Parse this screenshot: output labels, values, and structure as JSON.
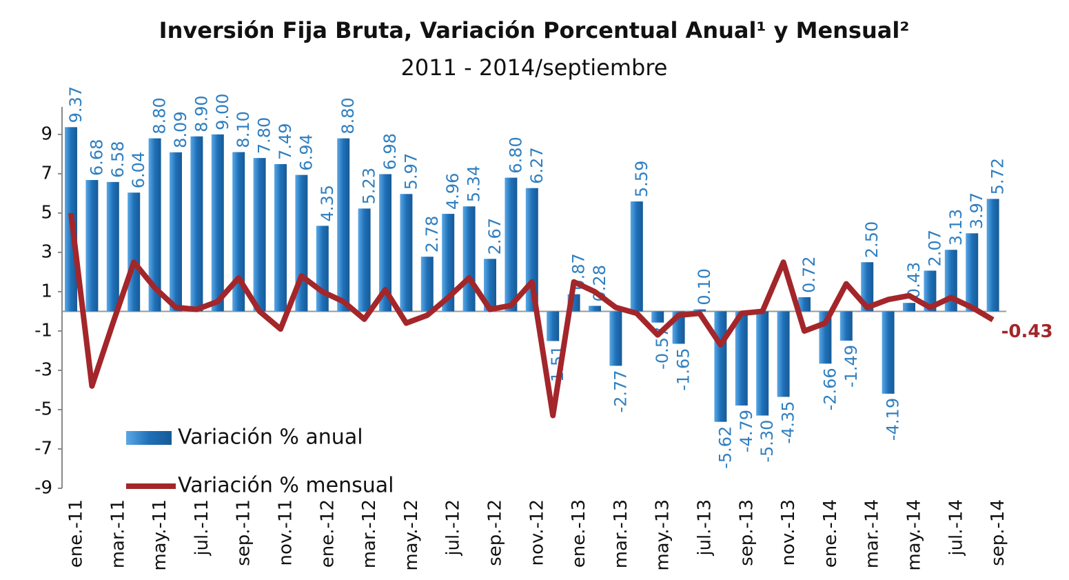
{
  "chart_data": {
    "type": "bar_line",
    "title": "Inversión Fija Bruta, Variación Porcentual Anual¹ y Mensual²",
    "subtitle": "2011 - 2014/septiembre",
    "categories": [
      "ene.-11",
      null,
      "mar.-11",
      null,
      "may.-11",
      null,
      "jul.-11",
      null,
      "sep.-11",
      null,
      "nov.-11",
      null,
      "ene.-12",
      null,
      "mar.-12",
      null,
      "may.-12",
      null,
      "jul.-12",
      null,
      "sep.-12",
      null,
      "nov.-12",
      null,
      "ene.-13",
      null,
      "mar.-13",
      null,
      "may.-13",
      null,
      "jul.-13",
      null,
      "sep.-13",
      null,
      "nov.-13",
      null,
      "ene.-14",
      null,
      "mar.-14",
      null,
      "may.-14",
      null,
      "jul.-14",
      null,
      "sep.-14"
    ],
    "series": [
      {
        "name": "Variación % anual",
        "color": "#1f70b8",
        "kind": "bar",
        "values": [
          9.37,
          6.68,
          6.58,
          6.04,
          8.8,
          8.09,
          8.9,
          9.0,
          8.1,
          7.8,
          7.49,
          6.94,
          4.35,
          8.8,
          5.23,
          6.98,
          5.97,
          2.78,
          4.96,
          5.34,
          2.67,
          6.8,
          6.27,
          -1.51,
          0.87,
          0.28,
          -2.77,
          5.59,
          -0.57,
          -1.65,
          0.1,
          -5.62,
          -4.79,
          -5.3,
          -4.35,
          0.72,
          -2.66,
          -1.49,
          2.5,
          -4.19,
          0.43,
          2.07,
          3.13,
          3.97,
          5.72
        ],
        "value_labels": [
          "9.37",
          "6.68",
          "6.58",
          "6.04",
          "8.80",
          "8.09",
          "8.90",
          "9.00",
          "8.10",
          "7.80",
          "7.49",
          "6.94",
          "4.35",
          "8.80",
          "5.23",
          "6.98",
          "5.97",
          "2.78",
          "4.96",
          "5.34",
          "2.67",
          "6.80",
          "6.27",
          "-1.51",
          "0.87",
          "0.28",
          "-2.77",
          "5.59",
          "-0.57",
          "-1.65",
          "0.10",
          "-5.62",
          "-4.79",
          "-5.30",
          "-4.35",
          "0.72",
          "-2.66",
          "-1.49",
          "2.50",
          "-4.19",
          "0.43",
          "2.07",
          "3.13",
          "3.97",
          "5.72"
        ]
      },
      {
        "name": "Variación % mensual",
        "color": "#a3262a",
        "kind": "line",
        "values": [
          5.0,
          -3.8,
          -0.6,
          2.5,
          1.2,
          0.2,
          0.1,
          0.5,
          1.7,
          0.0,
          -0.9,
          1.8,
          1.0,
          0.5,
          -0.4,
          1.1,
          -0.6,
          -0.2,
          0.7,
          1.7,
          0.1,
          0.3,
          1.5,
          -5.3,
          1.5,
          1.0,
          0.2,
          -0.1,
          -1.2,
          -0.2,
          -0.1,
          -1.7,
          -0.1,
          0.0,
          2.5,
          -1.0,
          -0.6,
          1.4,
          0.2,
          0.6,
          0.8,
          0.2,
          0.7,
          0.2,
          -0.43
        ]
      }
    ],
    "ylim": [
      -9,
      10.4
    ],
    "yticks": [
      -9,
      -7,
      -5,
      -3,
      -1,
      1,
      3,
      5,
      7,
      9
    ],
    "legend": "lower left",
    "grid": false
  }
}
